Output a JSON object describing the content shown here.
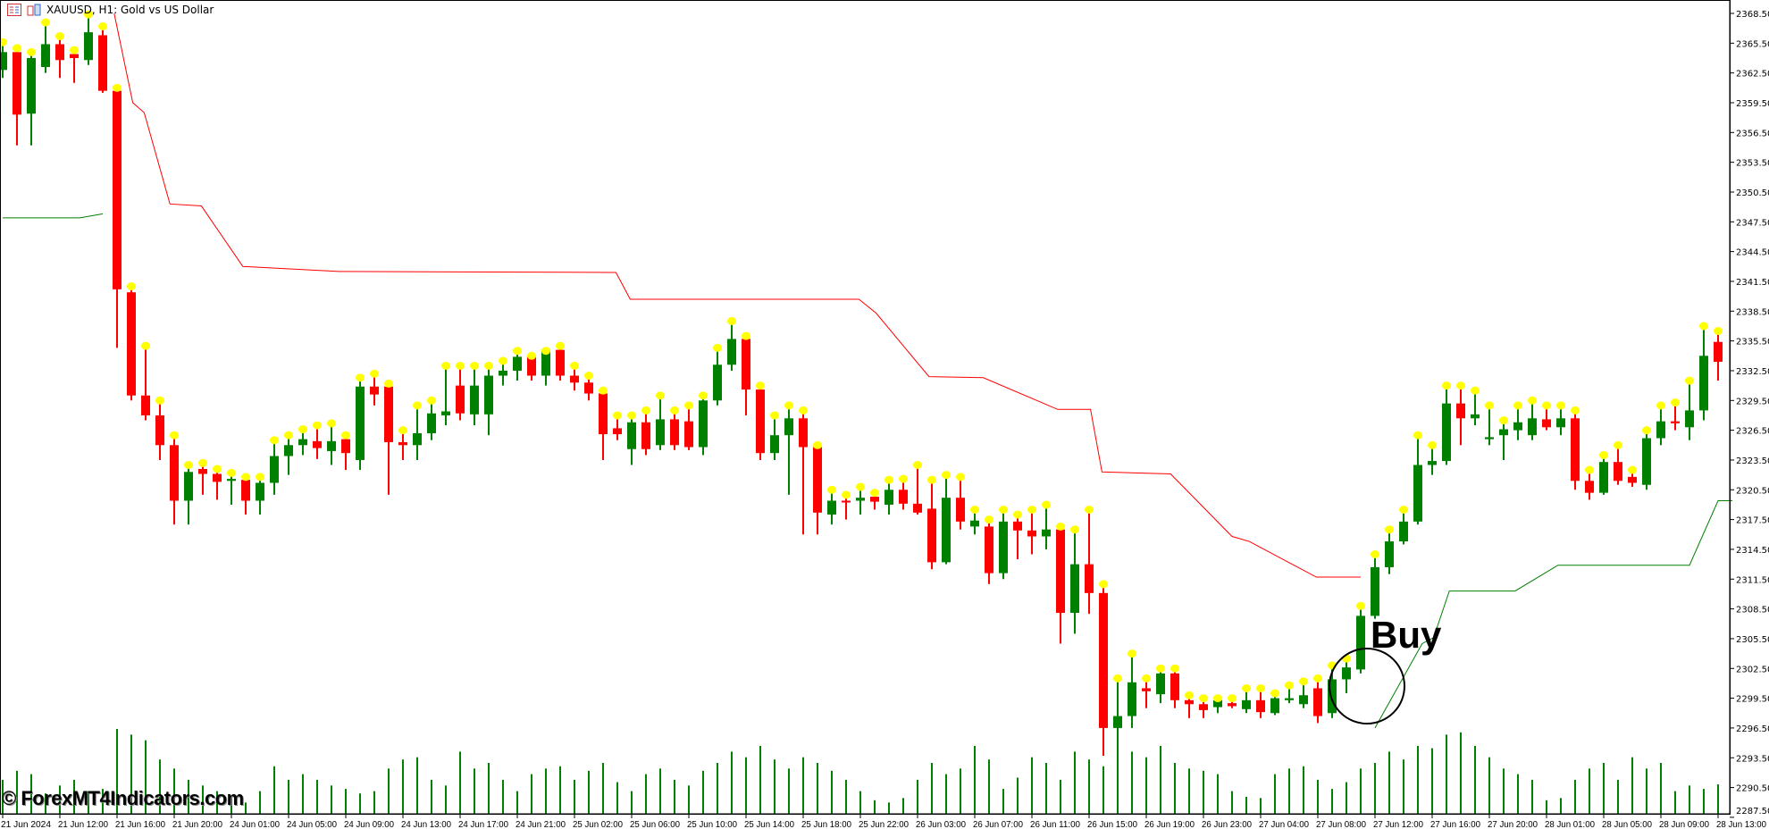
{
  "window": {
    "symbol_title": "XAUUSD, H1:  Gold vs US Dollar",
    "icons": [
      "chart-list-icon",
      "chart-properties-icon"
    ]
  },
  "watermark": "© ForexMT4Indicators.com",
  "annotation": {
    "label": "Buy"
  },
  "colors": {
    "bull": "#008000",
    "bear": "#ff0000",
    "high_dot": "#ffff00",
    "upper_line": "#ff0000",
    "lower_line": "#008000",
    "volume": "#008000",
    "background": "#ffffff"
  },
  "chart_data": {
    "type": "candlestick",
    "ylim": [
      2286.0,
      2369.5
    ],
    "price_ticks": [
      "2368.50",
      "2365.50",
      "2362.50",
      "2359.50",
      "2356.50",
      "2353.50",
      "2350.50",
      "2347.50",
      "2344.50",
      "2341.50",
      "2338.50",
      "2335.50",
      "2332.50",
      "2329.50",
      "2326.50",
      "2323.50",
      "2320.50",
      "2317.50",
      "2314.50",
      "2311.50",
      "2308.50",
      "2305.50",
      "2302.50",
      "2299.50",
      "2296.50",
      "2293.50",
      "2290.50",
      "2287.50"
    ],
    "time_ticks": [
      "21 Jun 2024",
      "21 Jun 12:00",
      "21 Jun 16:00",
      "21 Jun 20:00",
      "24 Jun 01:00",
      "24 Jun 05:00",
      "24 Jun 09:00",
      "24 Jun 13:00",
      "24 Jun 17:00",
      "24 Jun 21:00",
      "25 Jun 02:00",
      "25 Jun 06:00",
      "25 Jun 10:00",
      "25 Jun 14:00",
      "25 Jun 18:00",
      "25 Jun 22:00",
      "26 Jun 03:00",
      "26 Jun 07:00",
      "26 Jun 11:00",
      "26 Jun 15:00",
      "26 Jun 19:00",
      "26 Jun 23:00",
      "27 Jun 04:00",
      "27 Jun 08:00",
      "27 Jun 12:00",
      "27 Jun 16:00",
      "27 Jun 20:00",
      "28 Jun 01:00",
      "28 Jun 05:00",
      "28 Jun 09:00",
      "28 Jun 13:00"
    ],
    "ohlc": [
      [
        2362.8,
        2365.6,
        2362.0,
        2364.6
      ],
      [
        2364.6,
        2365.0,
        2355.2,
        2358.3
      ],
      [
        2358.4,
        2364.6,
        2355.2,
        2364.0
      ],
      [
        2363.1,
        2367.6,
        2362.5,
        2365.4
      ],
      [
        2365.4,
        2366.2,
        2362.0,
        2363.8
      ],
      [
        2364.4,
        2364.8,
        2361.5,
        2364.0
      ],
      [
        2363.8,
        2368.4,
        2363.3,
        2366.6
      ],
      [
        2366.3,
        2367.2,
        2360.5,
        2360.7
      ],
      [
        2360.7,
        2361.0,
        2334.8,
        2340.7
      ],
      [
        2340.4,
        2341.0,
        2329.5,
        2330.0
      ],
      [
        2330.0,
        2335.0,
        2327.5,
        2328.0
      ],
      [
        2328.0,
        2329.5,
        2323.5,
        2325.0
      ],
      [
        2325.0,
        2326.0,
        2317.0,
        2319.4
      ],
      [
        2319.4,
        2323.0,
        2317.0,
        2322.3
      ],
      [
        2322.6,
        2323.2,
        2320.0,
        2322.1
      ],
      [
        2322.1,
        2322.6,
        2319.5,
        2321.3
      ],
      [
        2321.4,
        2322.2,
        2319.0,
        2321.6
      ],
      [
        2321.5,
        2321.8,
        2318.0,
        2319.4
      ],
      [
        2319.4,
        2321.8,
        2318.0,
        2321.2
      ],
      [
        2321.2,
        2325.5,
        2320.0,
        2323.9
      ],
      [
        2323.9,
        2326.0,
        2322.0,
        2325.0
      ],
      [
        2325.0,
        2326.6,
        2324.0,
        2325.6
      ],
      [
        2325.4,
        2327.0,
        2323.6,
        2324.7
      ],
      [
        2324.4,
        2327.2,
        2323.0,
        2325.4
      ],
      [
        2325.6,
        2326.0,
        2322.5,
        2324.2
      ],
      [
        2323.5,
        2331.8,
        2322.5,
        2330.9
      ],
      [
        2330.9,
        2332.2,
        2329.0,
        2330.1
      ],
      [
        2330.9,
        2331.2,
        2320.0,
        2325.3
      ],
      [
        2325.3,
        2326.5,
        2323.5,
        2325.0
      ],
      [
        2325.0,
        2329.0,
        2323.5,
        2326.2
      ],
      [
        2326.2,
        2329.5,
        2325.5,
        2328.2
      ],
      [
        2328.0,
        2333.0,
        2327.0,
        2328.4
      ],
      [
        2331.0,
        2333.0,
        2327.5,
        2328.2
      ],
      [
        2328.1,
        2333.0,
        2327.0,
        2331.0
      ],
      [
        2328.1,
        2333.0,
        2326.0,
        2332.0
      ],
      [
        2332.0,
        2333.5,
        2331.0,
        2332.5
      ],
      [
        2332.5,
        2334.5,
        2331.5,
        2333.9
      ],
      [
        2333.9,
        2334.0,
        2331.5,
        2332.0
      ],
      [
        2332.0,
        2334.5,
        2331.0,
        2334.6
      ],
      [
        2334.6,
        2335.0,
        2331.5,
        2332.0
      ],
      [
        2332.0,
        2333.0,
        2330.5,
        2331.3
      ],
      [
        2331.3,
        2332.0,
        2329.5,
        2330.2
      ],
      [
        2330.2,
        2330.5,
        2323.5,
        2326.1
      ],
      [
        2326.7,
        2328.0,
        2325.5,
        2326.1
      ],
      [
        2324.6,
        2328.0,
        2323.0,
        2327.3
      ],
      [
        2327.3,
        2328.5,
        2324.0,
        2324.6
      ],
      [
        2325.0,
        2330.0,
        2324.5,
        2327.6
      ],
      [
        2327.6,
        2328.5,
        2324.5,
        2325.0
      ],
      [
        2327.4,
        2329.0,
        2324.5,
        2324.8
      ],
      [
        2324.8,
        2330.0,
        2324.0,
        2329.5
      ],
      [
        2329.5,
        2334.8,
        2329.0,
        2333.1
      ],
      [
        2333.1,
        2337.5,
        2332.5,
        2335.7
      ],
      [
        2335.7,
        2336.0,
        2328.0,
        2330.6
      ],
      [
        2330.6,
        2331.0,
        2323.5,
        2324.2
      ],
      [
        2324.2,
        2328.0,
        2323.5,
        2326.0
      ],
      [
        2326.0,
        2329.0,
        2320.0,
        2327.7
      ],
      [
        2327.7,
        2328.5,
        2316.0,
        2324.8
      ],
      [
        2324.8,
        2325.0,
        2316.0,
        2318.2
      ],
      [
        2318.0,
        2320.5,
        2317.0,
        2319.4
      ],
      [
        2319.4,
        2320.0,
        2317.5,
        2319.3
      ],
      [
        2319.4,
        2320.8,
        2318.0,
        2319.7
      ],
      [
        2319.8,
        2320.2,
        2318.5,
        2319.3
      ],
      [
        2319.0,
        2321.5,
        2318.0,
        2320.5
      ],
      [
        2320.5,
        2321.6,
        2318.5,
        2319.1
      ],
      [
        2319.1,
        2323.0,
        2318.0,
        2318.2
      ],
      [
        2318.6,
        2321.5,
        2312.5,
        2313.2
      ],
      [
        2313.2,
        2322.0,
        2313.0,
        2319.7
      ],
      [
        2319.7,
        2321.8,
        2316.5,
        2317.3
      ],
      [
        2316.8,
        2318.5,
        2316.0,
        2317.4
      ],
      [
        2316.8,
        2317.5,
        2311.0,
        2312.1
      ],
      [
        2312.1,
        2318.5,
        2311.5,
        2317.3
      ],
      [
        2317.3,
        2318.0,
        2313.5,
        2316.4
      ],
      [
        2316.4,
        2318.5,
        2314.0,
        2315.8
      ],
      [
        2315.8,
        2319.0,
        2314.5,
        2316.5
      ],
      [
        2316.5,
        2316.8,
        2305.0,
        2308.1
      ],
      [
        2308.1,
        2316.5,
        2306.0,
        2313.0
      ],
      [
        2313.0,
        2318.5,
        2308.0,
        2310.1
      ],
      [
        2310.1,
        2311.0,
        2293.7,
        2296.5
      ],
      [
        2296.5,
        2301.5,
        2295.5,
        2297.7
      ],
      [
        2297.7,
        2304.0,
        2296.5,
        2301.1
      ],
      [
        2300.5,
        2301.5,
        2298.5,
        2300.2
      ],
      [
        2299.9,
        2302.5,
        2299.0,
        2302.0
      ],
      [
        2302.0,
        2302.5,
        2298.5,
        2299.3
      ],
      [
        2299.3,
        2299.8,
        2297.5,
        2298.9
      ],
      [
        2298.9,
        2299.5,
        2297.5,
        2298.3
      ],
      [
        2298.6,
        2299.5,
        2298.0,
        2299.3
      ],
      [
        2299.0,
        2299.5,
        2298.5,
        2298.7
      ],
      [
        2298.4,
        2300.5,
        2298.0,
        2299.3
      ],
      [
        2299.3,
        2300.5,
        2297.5,
        2298.1
      ],
      [
        2298.0,
        2300.0,
        2297.8,
        2299.5
      ],
      [
        2299.3,
        2300.8,
        2299.0,
        2299.5
      ],
      [
        2298.9,
        2301.2,
        2298.5,
        2299.8
      ],
      [
        2300.5,
        2301.5,
        2297.0,
        2297.7
      ],
      [
        2298.0,
        2302.8,
        2297.5,
        2301.4
      ],
      [
        2301.4,
        2303.5,
        2300.0,
        2302.6
      ],
      [
        2302.4,
        2308.8,
        2302.0,
        2307.8
      ],
      [
        2307.8,
        2314.0,
        2307.5,
        2312.7
      ],
      [
        2312.7,
        2316.5,
        2312.0,
        2315.3
      ],
      [
        2315.3,
        2318.5,
        2315.0,
        2317.3
      ],
      [
        2317.3,
        2326.0,
        2317.0,
        2323.0
      ],
      [
        2323.0,
        2325.0,
        2322.0,
        2323.4
      ],
      [
        2323.4,
        2331.0,
        2323.0,
        2329.2
      ],
      [
        2329.2,
        2331.0,
        2325.0,
        2327.7
      ],
      [
        2327.7,
        2330.5,
        2327.0,
        2328.1
      ],
      [
        2325.6,
        2329.0,
        2325.0,
        2325.8
      ],
      [
        2326.0,
        2327.5,
        2323.5,
        2326.6
      ],
      [
        2326.5,
        2329.0,
        2325.5,
        2327.3
      ],
      [
        2326.0,
        2329.5,
        2325.5,
        2327.7
      ],
      [
        2327.6,
        2329.0,
        2326.5,
        2326.8
      ],
      [
        2326.8,
        2329.0,
        2326.0,
        2327.7
      ],
      [
        2327.7,
        2328.5,
        2320.5,
        2321.4
      ],
      [
        2321.4,
        2322.5,
        2319.5,
        2320.2
      ],
      [
        2320.2,
        2324.0,
        2320.0,
        2323.3
      ],
      [
        2323.3,
        2325.0,
        2321.0,
        2321.4
      ],
      [
        2321.8,
        2322.5,
        2320.8,
        2321.2
      ],
      [
        2321.0,
        2326.5,
        2320.5,
        2325.7
      ],
      [
        2325.7,
        2329.0,
        2325.0,
        2327.4
      ],
      [
        2327.4,
        2329.3,
        2326.5,
        2327.2
      ],
      [
        2326.8,
        2331.5,
        2325.5,
        2328.5
      ],
      [
        2328.5,
        2337.0,
        2327.5,
        2334.0
      ],
      [
        2335.4,
        2336.5,
        2331.5,
        2333.4
      ]
    ],
    "volume": [
      30,
      38,
      35,
      18,
      25,
      30,
      20,
      22,
      75,
      70,
      65,
      48,
      40,
      30,
      25,
      20,
      15,
      10,
      20,
      42,
      30,
      35,
      30,
      25,
      22,
      18,
      20,
      40,
      48,
      50,
      30,
      25,
      55,
      40,
      45,
      30,
      20,
      35,
      40,
      42,
      30,
      38,
      45,
      28,
      20,
      35,
      40,
      30,
      25,
      38,
      45,
      55,
      50,
      60,
      48,
      40,
      50,
      45,
      38,
      30,
      20,
      12,
      10,
      14,
      30,
      45,
      35,
      40,
      60,
      48,
      22,
      32,
      50,
      45,
      30,
      55,
      48,
      42,
      75,
      55,
      50,
      60,
      45,
      40,
      38,
      35,
      20,
      15,
      14,
      35,
      40,
      42,
      30,
      22,
      28,
      40,
      45,
      55,
      48,
      60,
      58,
      70,
      72,
      60,
      50,
      40,
      35,
      30,
      12,
      14,
      30,
      40,
      45,
      30,
      50,
      40,
      45,
      20,
      25,
      22,
      26
    ],
    "upper_line": [
      [
        7.8,
        2368.5
      ],
      [
        9.1,
        2359.5
      ],
      [
        9.9,
        2358.5
      ],
      [
        11.7,
        2349.3
      ],
      [
        13.9,
        2349.1
      ],
      [
        16.8,
        2343.0
      ],
      [
        23.5,
        2342.5
      ],
      [
        42.9,
        2342.4
      ],
      [
        43.9,
        2339.7
      ],
      [
        59.9,
        2339.7
      ],
      [
        61.1,
        2338.3
      ],
      [
        64.8,
        2331.9
      ],
      [
        68.6,
        2331.8
      ],
      [
        73.8,
        2328.6
      ],
      [
        76.1,
        2328.6
      ],
      [
        76.9,
        2322.3
      ],
      [
        81.7,
        2322.1
      ],
      [
        86.0,
        2315.8
      ],
      [
        87.2,
        2315.3
      ],
      [
        91.9,
        2311.7
      ],
      [
        95.0,
        2311.7
      ]
    ],
    "lower_line_early": [
      [
        0,
        2347.9
      ],
      [
        5.4,
        2347.9
      ],
      [
        7.0,
        2348.3
      ]
    ],
    "lower_line": [
      [
        96.0,
        2296.5
      ],
      [
        97.9,
        2301.4
      ],
      [
        99.3,
        2305.0
      ],
      [
        100.1,
        2305.6
      ],
      [
        101.2,
        2310.3
      ],
      [
        105.8,
        2310.3
      ],
      [
        108.8,
        2312.9
      ],
      [
        118.0,
        2312.9
      ],
      [
        120.0,
        2319.4
      ],
      [
        121.0,
        2319.4
      ]
    ]
  }
}
